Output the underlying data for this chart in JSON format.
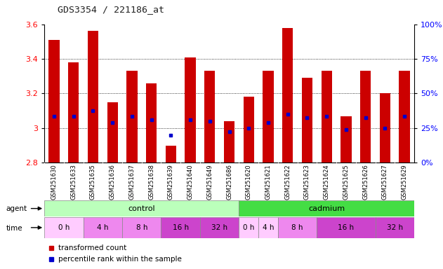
{
  "title": "GDS3354 / 221186_at",
  "samples": [
    "GSM251630",
    "GSM251633",
    "GSM251635",
    "GSM251636",
    "GSM251637",
    "GSM251638",
    "GSM251639",
    "GSM251640",
    "GSM251649",
    "GSM251686",
    "GSM251620",
    "GSM251621",
    "GSM251622",
    "GSM251623",
    "GSM251624",
    "GSM251625",
    "GSM251626",
    "GSM251627",
    "GSM251629"
  ],
  "bar_values": [
    3.51,
    3.38,
    3.56,
    3.15,
    3.33,
    3.26,
    2.9,
    3.41,
    3.33,
    3.04,
    3.18,
    3.33,
    3.58,
    3.29,
    3.33,
    3.07,
    3.33,
    3.2,
    3.33
  ],
  "percentile_values": [
    3.07,
    3.07,
    3.1,
    3.03,
    3.07,
    3.05,
    2.96,
    3.05,
    3.04,
    2.98,
    3.0,
    3.03,
    3.08,
    3.06,
    3.07,
    2.99,
    3.06,
    3.0,
    3.07
  ],
  "bar_bottom": 2.8,
  "y_min": 2.8,
  "y_max": 3.6,
  "y_ticks": [
    2.8,
    3.0,
    3.2,
    3.4,
    3.6
  ],
  "y_tick_labels": [
    "2.8",
    "3",
    "3.2",
    "3.4",
    "3.6"
  ],
  "right_y_ticks": [
    0,
    25,
    50,
    75,
    100
  ],
  "right_y_tick_positions": [
    2.8,
    3.0,
    3.2,
    3.4,
    3.6
  ],
  "bar_color": "#cc0000",
  "percentile_color": "#0000cc",
  "bg_color": "#ffffff",
  "plot_bg_color": "#ffffff",
  "grid_color": "#000000",
  "agent_groups": [
    {
      "name": "control",
      "start": 0,
      "end": 10,
      "color": "#bbffbb"
    },
    {
      "name": "cadmium",
      "start": 10,
      "end": 19,
      "color": "#44dd44"
    }
  ],
  "time_groups": [
    {
      "name": "0 h",
      "start": 0,
      "end": 2,
      "color": "#ffccff"
    },
    {
      "name": "4 h",
      "start": 2,
      "end": 4,
      "color": "#ee88ee"
    },
    {
      "name": "8 h",
      "start": 4,
      "end": 6,
      "color": "#ee88ee"
    },
    {
      "name": "16 h",
      "start": 6,
      "end": 8,
      "color": "#cc44cc"
    },
    {
      "name": "32 h",
      "start": 8,
      "end": 10,
      "color": "#cc44cc"
    },
    {
      "name": "0 h",
      "start": 10,
      "end": 11,
      "color": "#ffccff"
    },
    {
      "name": "4 h",
      "start": 11,
      "end": 12,
      "color": "#ffccff"
    },
    {
      "name": "8 h",
      "start": 12,
      "end": 14,
      "color": "#ee88ee"
    },
    {
      "name": "16 h",
      "start": 14,
      "end": 17,
      "color": "#cc44cc"
    },
    {
      "name": "32 h",
      "start": 17,
      "end": 19,
      "color": "#cc44cc"
    }
  ]
}
